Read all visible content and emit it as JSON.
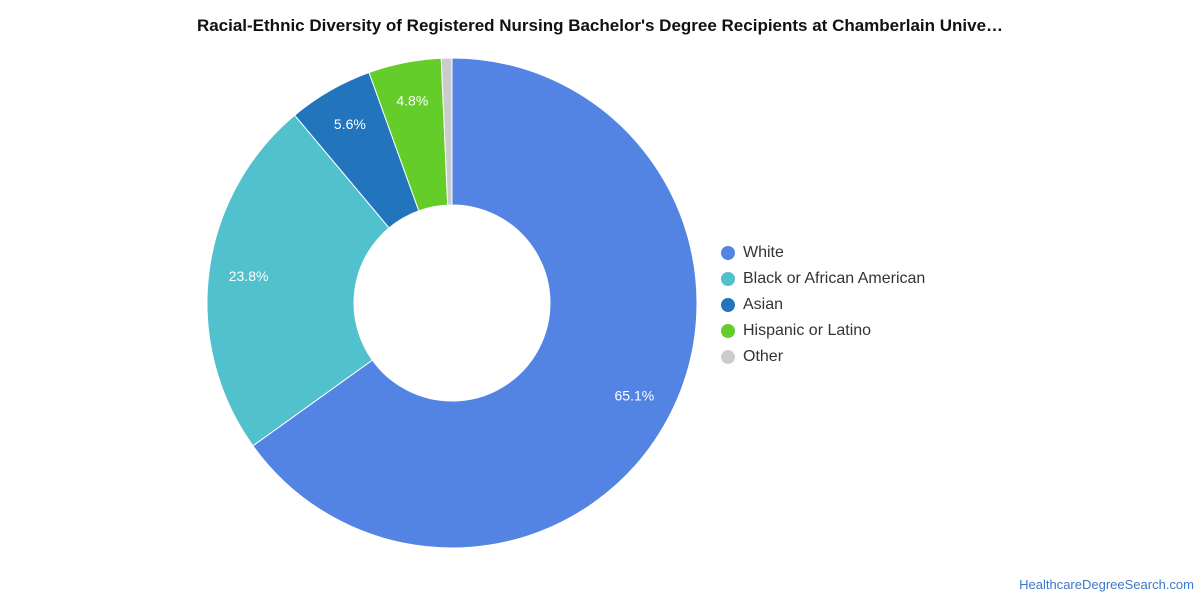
{
  "chart_data": {
    "type": "pie",
    "variant": "donut",
    "title": "Racial-Ethnic Diversity of Registered Nursing Bachelor's Degree Recipients at Chamberlain Unive…",
    "categories": [
      "White",
      "Black or African American",
      "Asian",
      "Hispanic or Latino",
      "Other"
    ],
    "values": [
      65.1,
      23.8,
      5.6,
      4.8,
      0.7
    ],
    "value_labels": [
      "65.1%",
      "23.8%",
      "5.6%",
      "4.8%",
      ""
    ],
    "colors": [
      "#5384e3",
      "#51c1ce",
      "#2275bd",
      "#64cd29",
      "#cccccc"
    ],
    "legend_position": "right"
  },
  "credit": {
    "text": "HealthcareDegreeSearch.com"
  }
}
